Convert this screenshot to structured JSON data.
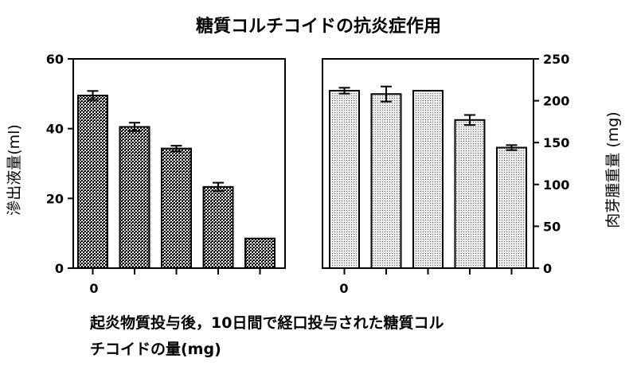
{
  "chart_data": {
    "title": "糖質コルチコイドの抗炎症作用",
    "xlabel_lines": [
      "起炎物質投与後，10日間で経口投与された糖質コル",
      "チコイドの量(mg)"
    ],
    "panels": [
      {
        "type": "bar",
        "ylabel": "滲出液量(ml)",
        "ylim": [
          0,
          60
        ],
        "yticks": [
          0,
          20,
          40,
          60
        ],
        "first_tick_label": "0",
        "pattern": "crosshatch",
        "values": [
          49.5,
          40.5,
          34.3,
          23.3,
          8.5
        ],
        "errors": [
          1.3,
          1.2,
          0.8,
          1.2,
          0
        ]
      },
      {
        "type": "bar",
        "ylabel": "肉芽腫重量 (mg)",
        "ylim": [
          0,
          250
        ],
        "yticks": [
          0,
          50,
          100,
          150,
          200,
          250
        ],
        "first_tick_label": "0",
        "pattern": "dots",
        "values": [
          212,
          208,
          212,
          177,
          144
        ],
        "errors": [
          3.5,
          9,
          0,
          6,
          3
        ]
      }
    ]
  }
}
